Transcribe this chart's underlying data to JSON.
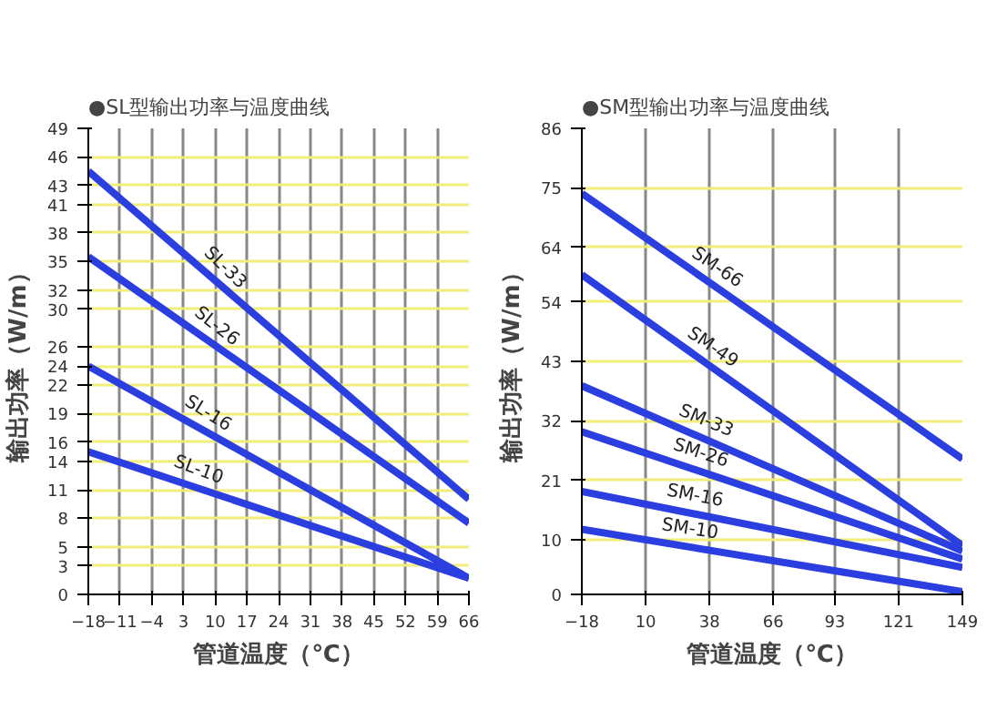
{
  "chart_data": [
    {
      "type": "line",
      "title": "●SL型输出功率与温度曲线",
      "xlabel": "管道温度（℃）",
      "ylabel": "输出功率（W/m）",
      "x": [
        -18,
        66
      ],
      "xlim": [
        -18,
        66
      ],
      "xticks": [
        -18,
        -11,
        -4,
        3,
        10,
        17,
        24,
        31,
        38,
        45,
        52,
        59,
        66
      ],
      "ylim": [
        0,
        49
      ],
      "yticks": [
        0,
        3,
        5,
        8,
        11,
        14,
        16,
        19,
        22,
        24,
        26,
        30,
        32,
        35,
        38,
        41,
        43,
        46,
        49
      ],
      "grid": true,
      "legend": false,
      "series": [
        {
          "name": "SL-33",
          "color": "#2b3fe0",
          "values": [
            44.5,
            10
          ]
        },
        {
          "name": "SL-26",
          "color": "#2b3fe0",
          "values": [
            35.5,
            7.5
          ]
        },
        {
          "name": "SL-16",
          "color": "#2b3fe0",
          "values": [
            24,
            1.7
          ]
        },
        {
          "name": "SL-10",
          "color": "#2b3fe0",
          "values": [
            15,
            1.7
          ]
        }
      ]
    },
    {
      "type": "line",
      "title": "●SM型输出功率与温度曲线",
      "xlabel": "管道温度（℃）",
      "ylabel": "输出功率（W/m）",
      "x": [
        -18,
        149
      ],
      "xlim": [
        -18,
        149
      ],
      "xticks": [
        -18,
        10,
        38,
        66,
        93,
        121,
        149
      ],
      "ylim": [
        0,
        86
      ],
      "yticks": [
        0,
        10,
        21,
        32,
        43,
        54,
        64,
        75,
        86
      ],
      "grid": true,
      "legend": false,
      "series": [
        {
          "name": "SM-66",
          "color": "#2b3fe0",
          "values": [
            74,
            25
          ]
        },
        {
          "name": "SM-49",
          "color": "#2b3fe0",
          "values": [
            59,
            9
          ]
        },
        {
          "name": "SM-33",
          "color": "#2b3fe0",
          "values": [
            38.5,
            8
          ]
        },
        {
          "name": "SM-26",
          "color": "#2b3fe0",
          "values": [
            30,
            6.5
          ]
        },
        {
          "name": "SM-16",
          "color": "#2b3fe0",
          "values": [
            19,
            5
          ]
        },
        {
          "name": "SM-10",
          "color": "#2b3fe0",
          "values": [
            12,
            0.5
          ]
        }
      ]
    }
  ]
}
